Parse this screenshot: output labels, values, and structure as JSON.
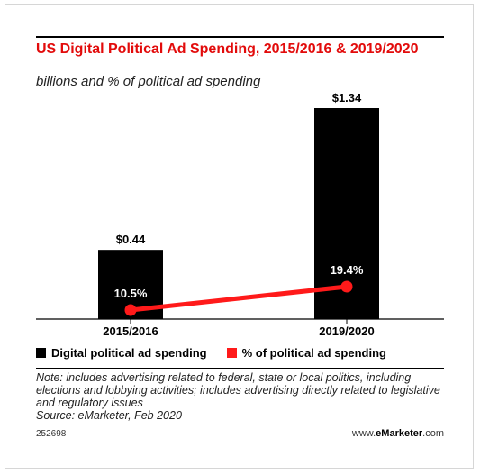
{
  "title": "US Digital Political Ad Spending, 2015/2016 & 2019/2020",
  "subtitle": "billions and % of political ad spending",
  "legend": {
    "spending_label": "Digital political ad spending",
    "percent_label": "% of political ad spending"
  },
  "note": "Note: includes advertising related to federal, state or local politics, including elections and lobbying activities; includes advertising directly related to legislative and regulatory issues",
  "source": "Source: eMarketer, Feb 2020",
  "chart_id": "252698",
  "website": {
    "prefix": "www.",
    "brand": "eMarketer",
    "suffix": ".com"
  },
  "colors": {
    "bar": "#000000",
    "line": "#ff1a1a",
    "title": "#e20b0b"
  },
  "chart_data": {
    "type": "bar",
    "categories": [
      "2015/2016",
      "2019/2020"
    ],
    "series": [
      {
        "name": "Digital political ad spending",
        "type": "bar",
        "values": [
          0.44,
          1.34
        ],
        "labels": [
          "$0.44",
          "$1.34"
        ]
      },
      {
        "name": "% of political ad spending",
        "type": "line",
        "values": [
          10.5,
          19.4
        ],
        "labels": [
          "10.5%",
          "19.4%"
        ]
      }
    ],
    "title": "US Digital Political Ad Spending, 2015/2016 & 2019/2020",
    "xlabel": "",
    "ylabel": "",
    "grid": false,
    "legend_position": "bottom"
  }
}
